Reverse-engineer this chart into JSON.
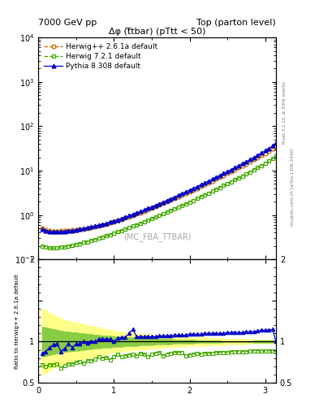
{
  "title_left": "7000 GeV pp",
  "title_right": "Top (parton level)",
  "plot_title": "Δφ (t̅tbar) (pTtt < 50)",
  "watermark": "(MC_FBA_TTBAR)",
  "right_label_top": "Rivet 3.1.10, ≥ 300k events",
  "right_label_bottom": "mcplots.cern.ch [arXiv:1306.3436]",
  "ylabel_ratio": "Ratio to Herwig++ 2.6.1a default",
  "xlim": [
    0,
    3.14159
  ],
  "ylim_main_lo": 0.1,
  "ylim_main_hi": 10000,
  "ylim_ratio_lo": 0.5,
  "ylim_ratio_hi": 2.0,
  "legend_entries": [
    "Herwig++ 2.6.1a default",
    "Herwig 7.2.1 default",
    "Pythia 8.308 default"
  ],
  "herwig_pp_color": "#cc6600",
  "herwig7_color": "#44aa00",
  "pythia_color": "#0000cc",
  "band_yellow": "#ffff88",
  "band_green": "#88cc44",
  "x_data": [
    0.05,
    0.1,
    0.15,
    0.2,
    0.25,
    0.3,
    0.35,
    0.4,
    0.45,
    0.5,
    0.55,
    0.6,
    0.65,
    0.7,
    0.75,
    0.8,
    0.85,
    0.9,
    0.95,
    1.0,
    1.05,
    1.1,
    1.15,
    1.2,
    1.25,
    1.3,
    1.35,
    1.4,
    1.45,
    1.5,
    1.55,
    1.6,
    1.65,
    1.7,
    1.75,
    1.8,
    1.85,
    1.9,
    1.95,
    2.0,
    2.05,
    2.1,
    2.15,
    2.2,
    2.25,
    2.3,
    2.35,
    2.4,
    2.45,
    2.5,
    2.55,
    2.6,
    2.65,
    2.7,
    2.75,
    2.8,
    2.85,
    2.9,
    2.95,
    3.0,
    3.05,
    3.1,
    3.14
  ],
  "herwig_pp_y": [
    0.5,
    0.47,
    0.44,
    0.43,
    0.43,
    0.44,
    0.44,
    0.45,
    0.46,
    0.46,
    0.48,
    0.49,
    0.51,
    0.53,
    0.55,
    0.57,
    0.6,
    0.63,
    0.67,
    0.71,
    0.75,
    0.8,
    0.86,
    0.92,
    0.99,
    1.06,
    1.14,
    1.23,
    1.33,
    1.44,
    1.56,
    1.69,
    1.83,
    1.99,
    2.17,
    2.36,
    2.57,
    2.81,
    3.07,
    3.36,
    3.68,
    4.03,
    4.42,
    4.85,
    5.33,
    5.86,
    6.45,
    7.1,
    7.83,
    8.64,
    9.54,
    10.5,
    11.7,
    12.9,
    14.3,
    15.9,
    17.7,
    19.7,
    22.0,
    24.7,
    27.8,
    31.5,
    36.0
  ],
  "herwig7_y": [
    0.2,
    0.19,
    0.18,
    0.18,
    0.18,
    0.19,
    0.19,
    0.2,
    0.21,
    0.22,
    0.23,
    0.24,
    0.25,
    0.27,
    0.28,
    0.3,
    0.32,
    0.34,
    0.36,
    0.39,
    0.42,
    0.45,
    0.48,
    0.52,
    0.56,
    0.6,
    0.65,
    0.7,
    0.76,
    0.82,
    0.89,
    0.97,
    1.05,
    1.15,
    1.25,
    1.36,
    1.49,
    1.63,
    1.78,
    1.95,
    2.14,
    2.35,
    2.58,
    2.84,
    3.12,
    3.44,
    3.79,
    4.18,
    4.61,
    5.09,
    5.62,
    6.21,
    6.87,
    7.6,
    8.43,
    9.36,
    10.4,
    11.6,
    12.9,
    14.5,
    16.3,
    18.5,
    21.2
  ],
  "pythia_y": [
    0.48,
    0.45,
    0.42,
    0.42,
    0.42,
    0.43,
    0.43,
    0.44,
    0.45,
    0.46,
    0.48,
    0.5,
    0.52,
    0.54,
    0.56,
    0.59,
    0.62,
    0.65,
    0.69,
    0.73,
    0.78,
    0.84,
    0.9,
    0.97,
    1.04,
    1.12,
    1.21,
    1.3,
    1.41,
    1.53,
    1.66,
    1.8,
    1.96,
    2.13,
    2.33,
    2.54,
    2.78,
    3.04,
    3.33,
    3.65,
    4.0,
    4.39,
    4.83,
    5.31,
    5.84,
    6.44,
    7.1,
    7.83,
    8.65,
    9.56,
    10.6,
    11.7,
    13.0,
    14.4,
    16.0,
    17.9,
    19.9,
    22.3,
    25.0,
    28.1,
    31.8,
    36.2,
    41.5
  ],
  "ratio_pythia": [
    0.96,
    0.96,
    0.95,
    0.98,
    0.98,
    0.98,
    0.98,
    0.98,
    0.98,
    1.0,
    1.0,
    1.02,
    1.02,
    1.02,
    1.02,
    1.03,
    1.03,
    1.03,
    1.03,
    1.03,
    1.04,
    1.05,
    1.05,
    1.05,
    1.05,
    1.06,
    1.06,
    1.06,
    1.06,
    1.06,
    1.06,
    1.07,
    1.07,
    1.07,
    1.07,
    1.08,
    1.08,
    1.08,
    1.08,
    1.09,
    1.09,
    1.09,
    1.09,
    1.09,
    1.1,
    1.1,
    1.1,
    1.1,
    1.1,
    1.11,
    1.11,
    1.11,
    1.11,
    1.11,
    1.12,
    1.12,
    1.12,
    1.13,
    1.14,
    1.14,
    1.14,
    1.15,
    1.15
  ],
  "ratio_pythia_osc": [
    0.86,
    0.88,
    0.93,
    0.96,
    0.97,
    0.88,
    0.92,
    0.97,
    0.93,
    0.97,
    0.97,
    1.0,
    0.98,
    1.0,
    1.0,
    1.03,
    1.03,
    1.03,
    1.03,
    1.0,
    1.04,
    1.05,
    1.05,
    1.1,
    1.15,
    1.06,
    1.06,
    1.06,
    1.06,
    1.06,
    1.06,
    1.07,
    1.07,
    1.07,
    1.07,
    1.08,
    1.08,
    1.08,
    1.08,
    1.09,
    1.09,
    1.09,
    1.09,
    1.1,
    1.1,
    1.1,
    1.1,
    1.1,
    1.1,
    1.11,
    1.11,
    1.11,
    1.11,
    1.11,
    1.12,
    1.12,
    1.12,
    1.13,
    1.14,
    1.14,
    1.14,
    1.15,
    1.0
  ],
  "ratio_herwig7_osc": [
    0.72,
    0.7,
    0.72,
    0.72,
    0.73,
    0.68,
    0.71,
    0.73,
    0.73,
    0.75,
    0.76,
    0.74,
    0.77,
    0.77,
    0.79,
    0.82,
    0.8,
    0.81,
    0.78,
    0.82,
    0.85,
    0.82,
    0.83,
    0.84,
    0.85,
    0.83,
    0.86,
    0.85,
    0.82,
    0.85,
    0.86,
    0.87,
    0.83,
    0.85,
    0.86,
    0.87,
    0.87,
    0.87,
    0.83,
    0.84,
    0.85,
    0.86,
    0.85,
    0.86,
    0.86,
    0.86,
    0.87,
    0.87,
    0.87,
    0.87,
    0.88,
    0.88,
    0.88,
    0.88,
    0.88,
    0.89,
    0.89,
    0.89,
    0.89,
    0.89,
    0.89,
    0.89,
    0.88
  ],
  "band_yellow_lo": [
    0.6,
    0.62,
    0.65,
    0.68,
    0.7,
    0.72,
    0.74,
    0.75,
    0.76,
    0.77,
    0.78,
    0.79,
    0.8,
    0.81,
    0.82,
    0.83,
    0.84,
    0.85,
    0.86,
    0.87,
    0.88,
    0.88,
    0.89,
    0.89,
    0.9,
    0.9,
    0.91,
    0.91,
    0.91,
    0.92,
    0.92,
    0.92,
    0.93,
    0.93,
    0.93,
    0.94,
    0.94,
    0.94,
    0.94,
    0.95,
    0.95,
    0.95,
    0.95,
    0.95,
    0.96,
    0.96,
    0.96,
    0.96,
    0.96,
    0.97,
    0.97,
    0.97,
    0.97,
    0.97,
    0.97,
    0.98,
    0.98,
    0.98,
    0.98,
    0.98,
    0.98,
    0.98,
    0.98
  ],
  "band_yellow_hi": [
    1.4,
    1.38,
    1.35,
    1.32,
    1.3,
    1.28,
    1.26,
    1.25,
    1.24,
    1.23,
    1.22,
    1.21,
    1.2,
    1.19,
    1.18,
    1.17,
    1.16,
    1.15,
    1.14,
    1.13,
    1.12,
    1.12,
    1.11,
    1.11,
    1.1,
    1.1,
    1.09,
    1.09,
    1.09,
    1.08,
    1.08,
    1.08,
    1.07,
    1.07,
    1.07,
    1.06,
    1.06,
    1.06,
    1.06,
    1.05,
    1.05,
    1.05,
    1.05,
    1.05,
    1.04,
    1.04,
    1.04,
    1.04,
    1.04,
    1.03,
    1.03,
    1.03,
    1.03,
    1.03,
    1.03,
    1.02,
    1.02,
    1.02,
    1.02,
    1.02,
    1.02,
    1.02,
    1.02
  ],
  "band_green_lo": [
    0.82,
    0.83,
    0.84,
    0.85,
    0.86,
    0.87,
    0.88,
    0.88,
    0.89,
    0.89,
    0.9,
    0.9,
    0.91,
    0.91,
    0.92,
    0.92,
    0.93,
    0.93,
    0.93,
    0.94,
    0.94,
    0.94,
    0.95,
    0.95,
    0.95,
    0.95,
    0.96,
    0.96,
    0.96,
    0.96,
    0.97,
    0.97,
    0.97,
    0.97,
    0.97,
    0.98,
    0.98,
    0.98,
    0.98,
    0.98,
    0.98,
    0.99,
    0.99,
    0.99,
    0.99,
    0.99,
    0.99,
    0.99,
    1.0,
    1.0,
    1.0,
    1.0,
    1.0,
    1.0,
    1.0,
    1.0,
    1.01,
    1.01,
    1.01,
    1.01,
    1.01,
    1.01,
    1.01
  ],
  "band_green_hi": [
    1.18,
    1.17,
    1.16,
    1.15,
    1.14,
    1.13,
    1.12,
    1.12,
    1.11,
    1.11,
    1.1,
    1.1,
    1.09,
    1.09,
    1.08,
    1.08,
    1.07,
    1.07,
    1.07,
    1.06,
    1.06,
    1.06,
    1.05,
    1.05,
    1.05,
    1.05,
    1.04,
    1.04,
    1.04,
    1.04,
    1.03,
    1.03,
    1.03,
    1.03,
    1.03,
    1.02,
    1.02,
    1.02,
    1.02,
    1.02,
    1.02,
    1.01,
    1.01,
    1.01,
    1.01,
    1.01,
    1.01,
    1.01,
    1.0,
    1.0,
    1.0,
    1.0,
    1.0,
    1.0,
    1.0,
    1.0,
    0.99,
    0.99,
    0.99,
    0.99,
    0.99,
    0.99,
    0.99
  ]
}
